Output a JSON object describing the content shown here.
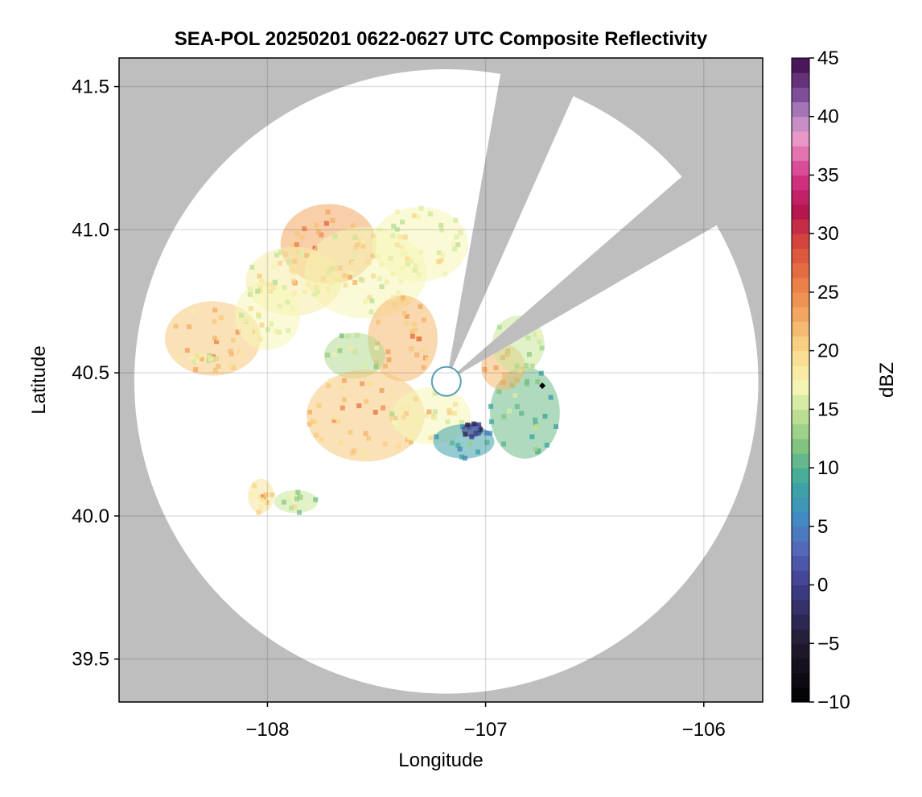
{
  "chart_data": {
    "type": "heatmap",
    "title": "SEA-POL 20250201 0622-0627 UTC Composite Reflectivity",
    "xlabel": "Longitude",
    "ylabel": "Latitude",
    "xlim": [
      -108.68,
      -105.73
    ],
    "ylim": [
      39.35,
      41.6
    ],
    "xticks": [
      -108,
      -107,
      -106
    ],
    "xtick_labels": [
      "−108",
      "−107",
      "−106"
    ],
    "yticks": [
      39.5,
      40.0,
      40.5,
      41.0,
      41.5
    ],
    "ytick_labels": [
      "39.5",
      "40.0",
      "40.5",
      "41.0",
      "41.5"
    ],
    "grid": true,
    "no_data_color": "#bebebe",
    "radar_site": {
      "lon": -107.18,
      "lat": 40.47
    },
    "coverage_range_lon_deg": 1.43,
    "blocked_sectors_azimuth_deg": [
      [
        10,
        24
      ],
      [
        49,
        60
      ]
    ],
    "colorbar": {
      "label": "dBZ",
      "range": [
        -10,
        45
      ],
      "ticks": [
        -10,
        -5,
        0,
        5,
        10,
        15,
        20,
        25,
        30,
        35,
        40,
        45
      ],
      "tick_labels": [
        "−10",
        "−5",
        "0",
        "5",
        "10",
        "15",
        "20",
        "25",
        "30",
        "35",
        "40",
        "45"
      ],
      "colormap": [
        [
          -10,
          "#000000"
        ],
        [
          -5,
          "#221a2e"
        ],
        [
          0,
          "#3f3f8c"
        ],
        [
          3,
          "#5566b8"
        ],
        [
          6,
          "#3f8fc4"
        ],
        [
          9,
          "#3fa99c"
        ],
        [
          12,
          "#84c57f"
        ],
        [
          15,
          "#c8e69a"
        ],
        [
          17,
          "#f5f6b6"
        ],
        [
          20,
          "#f9d98b"
        ],
        [
          23,
          "#f3a861"
        ],
        [
          26,
          "#ea7a45"
        ],
        [
          29,
          "#d84b3b"
        ],
        [
          32,
          "#b4134f"
        ],
        [
          35,
          "#d6388a"
        ],
        [
          38,
          "#eb98c6"
        ],
        [
          40,
          "#b589c4"
        ],
        [
          42,
          "#7b4a96"
        ],
        [
          45,
          "#3f0a4a"
        ]
      ]
    },
    "echo_regions": [
      {
        "lon": -107.72,
        "lat": 40.95,
        "rlon": 0.22,
        "rlat": 0.14,
        "dbz": 26
      },
      {
        "lon": -107.55,
        "lat": 40.85,
        "rlon": 0.28,
        "rlat": 0.16,
        "dbz": 20
      },
      {
        "lon": -107.3,
        "lat": 40.95,
        "rlon": 0.22,
        "rlat": 0.13,
        "dbz": 20
      },
      {
        "lon": -107.88,
        "lat": 40.82,
        "rlon": 0.22,
        "rlat": 0.12,
        "dbz": 21
      },
      {
        "lon": -108.25,
        "lat": 40.62,
        "rlon": 0.22,
        "rlat": 0.13,
        "dbz": 24
      },
      {
        "lon": -108.0,
        "lat": 40.7,
        "rlon": 0.15,
        "rlat": 0.12,
        "dbz": 20
      },
      {
        "lon": -107.38,
        "lat": 40.62,
        "rlon": 0.16,
        "rlat": 0.15,
        "dbz": 25
      },
      {
        "lon": -107.6,
        "lat": 40.56,
        "rlon": 0.14,
        "rlat": 0.08,
        "dbz": 17
      },
      {
        "lon": -107.55,
        "lat": 40.35,
        "rlon": 0.27,
        "rlat": 0.16,
        "dbz": 24
      },
      {
        "lon": -107.25,
        "lat": 40.35,
        "rlon": 0.18,
        "rlat": 0.1,
        "dbz": 20
      },
      {
        "lon": -107.1,
        "lat": 40.26,
        "rlon": 0.14,
        "rlat": 0.06,
        "dbz": 11
      },
      {
        "lon": -107.06,
        "lat": 40.3,
        "rlon": 0.05,
        "rlat": 0.025,
        "dbz": 2
      },
      {
        "lon": -106.82,
        "lat": 40.36,
        "rlon": 0.16,
        "rlat": 0.16,
        "dbz": 14
      },
      {
        "lon": -106.92,
        "lat": 40.52,
        "rlon": 0.1,
        "rlat": 0.08,
        "dbz": 25
      },
      {
        "lon": -106.85,
        "lat": 40.6,
        "rlon": 0.12,
        "rlat": 0.1,
        "dbz": 18
      },
      {
        "lon": -108.03,
        "lat": 40.07,
        "rlon": 0.06,
        "rlat": 0.06,
        "dbz": 22
      },
      {
        "lon": -107.87,
        "lat": 40.05,
        "rlon": 0.1,
        "rlat": 0.04,
        "dbz": 18
      },
      {
        "lon": -108.3,
        "lat": 40.55,
        "rlon": 0.06,
        "rlat": 0.015,
        "dbz": 20
      }
    ],
    "markers": [
      {
        "lon": -106.74,
        "lat": 40.455,
        "shape": "diamond",
        "color": "#000000"
      }
    ]
  }
}
